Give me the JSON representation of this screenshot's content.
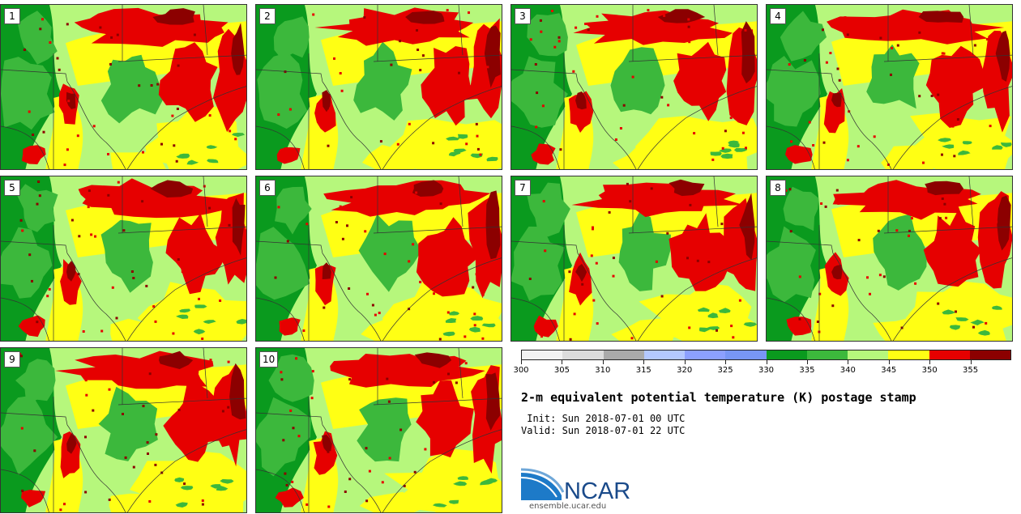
{
  "panels": [
    {
      "label": "1"
    },
    {
      "label": "2"
    },
    {
      "label": "3"
    },
    {
      "label": "4"
    },
    {
      "label": "5"
    },
    {
      "label": "6"
    },
    {
      "label": "7"
    },
    {
      "label": "8"
    },
    {
      "label": "9"
    },
    {
      "label": "10"
    }
  ],
  "colorbar": {
    "ticks": [
      "300",
      "305",
      "310",
      "315",
      "320",
      "325",
      "330",
      "335",
      "340",
      "345",
      "350",
      "355"
    ],
    "colors": [
      "#f2f2f2",
      "#dcdcdc",
      "#aaaaaa",
      "#b4c8ff",
      "#8ca0ff",
      "#7896f5",
      "#0a9a1e",
      "#3cb83c",
      "#b6f77c",
      "#ffff14",
      "#e60000",
      "#8c0000"
    ]
  },
  "title": "2-m equivalent potential temperature (K) postage stamp",
  "init": " Init: Sun 2018-07-01 00 UTC",
  "valid": "Valid: Sun 2018-07-01 22 UTC",
  "logo": {
    "text": "NCAR",
    "url": "ensemble.ucar.edu",
    "color": "#1a4a8a"
  },
  "map_colors": {
    "dark_green": "#0a9a1e",
    "green": "#3cb83c",
    "light_green": "#b6f77c",
    "yellow": "#ffff14",
    "red": "#e60000",
    "dark_red": "#8c0000",
    "boundary": "#333333"
  }
}
